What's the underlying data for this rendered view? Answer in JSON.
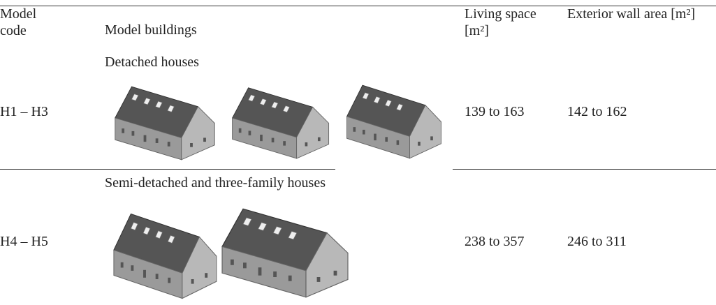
{
  "header": {
    "model_code": "Model code",
    "model_buildings": "Model buildings",
    "living_space": "Living space [m²]",
    "exterior_wall_area": "Exterior wall area [m²]"
  },
  "rows": [
    {
      "group": "Detached houses",
      "code": "H1 – H3",
      "living_space": "139 to 163",
      "exterior_wall_area": "142 to 162"
    },
    {
      "group": "Semi-detached and three-family houses",
      "code": "H4 – H5",
      "living_space": "238 to 357",
      "exterior_wall_area": "246 to 311"
    }
  ]
}
